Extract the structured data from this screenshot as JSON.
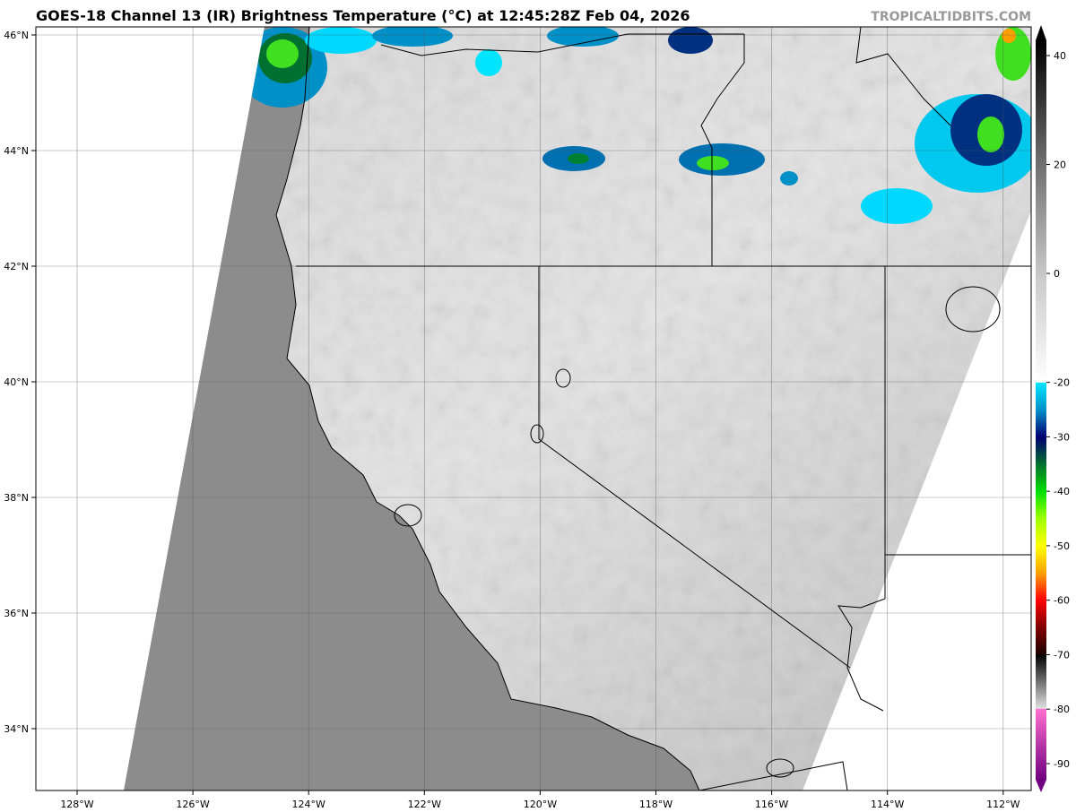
{
  "title": "GOES-18 Channel 13 (IR) Brightness Temperature (°C) at 12:45:28Z Feb 04, 2026",
  "brand": "TROPICALTIDBITS.COM",
  "map": {
    "lon_labels": [
      "128°W",
      "126°W",
      "124°W",
      "122°W",
      "120°W",
      "118°W",
      "116°W",
      "114°W",
      "112°W"
    ],
    "lat_labels": [
      "46°N",
      "44°N",
      "42°N",
      "40°N",
      "38°N",
      "36°N",
      "34°N"
    ],
    "lon_range": [
      -128.7,
      -111.5
    ],
    "lat_range": [
      32.9,
      46.2
    ],
    "gridlines": true,
    "colors": {
      "ocean": "#8c8c8c",
      "land": "#cfcfcf",
      "outside": "#ffffff"
    }
  },
  "colorbar": {
    "tick_labels": [
      "40",
      "20",
      "0",
      "-20",
      "-30",
      "-40",
      "-50",
      "-60",
      "-70",
      "-80",
      "-90"
    ],
    "range": [
      -93,
      43
    ],
    "stops": [
      {
        "v": 43,
        "c": "#000000"
      },
      {
        "v": 20,
        "c": "#707070"
      },
      {
        "v": 0,
        "c": "#c8c8c8"
      },
      {
        "v": -19.9,
        "c": "#ffffff"
      },
      {
        "v": -20,
        "c": "#00e5ff"
      },
      {
        "v": -25,
        "c": "#0090c8"
      },
      {
        "v": -30,
        "c": "#000070"
      },
      {
        "v": -35,
        "c": "#007030"
      },
      {
        "v": -40,
        "c": "#00e000"
      },
      {
        "v": -45,
        "c": "#a0ff00"
      },
      {
        "v": -50,
        "c": "#ffff00"
      },
      {
        "v": -55,
        "c": "#ffa000"
      },
      {
        "v": -60,
        "c": "#ff0000"
      },
      {
        "v": -65,
        "c": "#800000"
      },
      {
        "v": -69.9,
        "c": "#200000"
      },
      {
        "v": -70,
        "c": "#000000"
      },
      {
        "v": -79.9,
        "c": "#e0e0e0"
      },
      {
        "v": -80,
        "c": "#ff70d0"
      },
      {
        "v": -93,
        "c": "#700080"
      }
    ]
  }
}
